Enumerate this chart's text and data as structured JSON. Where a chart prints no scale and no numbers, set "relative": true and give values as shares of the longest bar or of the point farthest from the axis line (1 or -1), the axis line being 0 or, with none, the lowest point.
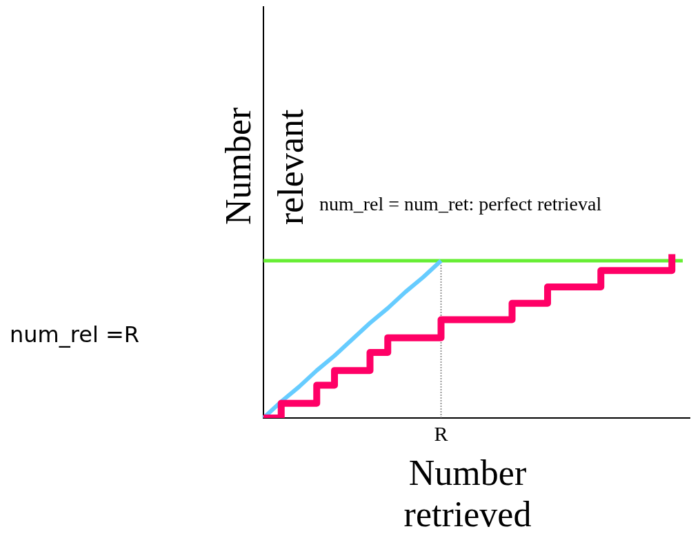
{
  "chart_data": {
    "type": "line",
    "relative": true,
    "xlabel": "Number retrieved",
    "ylabel": "Number relevant",
    "categories": [
      null,
      null,
      null,
      null,
      null,
      null,
      null,
      null,
      null,
      null,
      null,
      null,
      null,
      null,
      null,
      null,
      null,
      null,
      null,
      null,
      null,
      null,
      null,
      null,
      null
    ],
    "series": [
      {
        "type": "step",
        "color": "#ff0066",
        "values": [
          0,
          0.09,
          0.09,
          0.2,
          0.29,
          0.29,
          0.4,
          0.49,
          0.49,
          0.49,
          0.6,
          0.6,
          0.6,
          0.6,
          0.7,
          0.7,
          0.8,
          0.8,
          0.8,
          0.9,
          0.9,
          0.9,
          0.9,
          1,
          null
        ]
      },
      {
        "type": "line",
        "color": "#66ccff",
        "values": [
          0,
          0.1,
          0.19,
          0.29,
          0.38,
          0.48,
          0.58,
          0.67,
          0.77,
          0.86,
          0.96,
          null,
          null,
          null,
          null,
          null,
          null,
          null,
          null,
          null,
          null,
          null,
          null,
          null,
          null
        ]
      }
    ],
    "ref_lines": [
      {
        "axis": "y",
        "value": 0.96,
        "color": "#66ee33",
        "line_style": "solid"
      },
      {
        "axis": "x",
        "label": "R",
        "color": "#777777",
        "line_style": "dotted"
      }
    ],
    "annotations": [
      "num_rel = num_ret: perfect retrieval",
      "num_rel =R"
    ],
    "grid": false,
    "legend": false,
    "marker": "none"
  }
}
